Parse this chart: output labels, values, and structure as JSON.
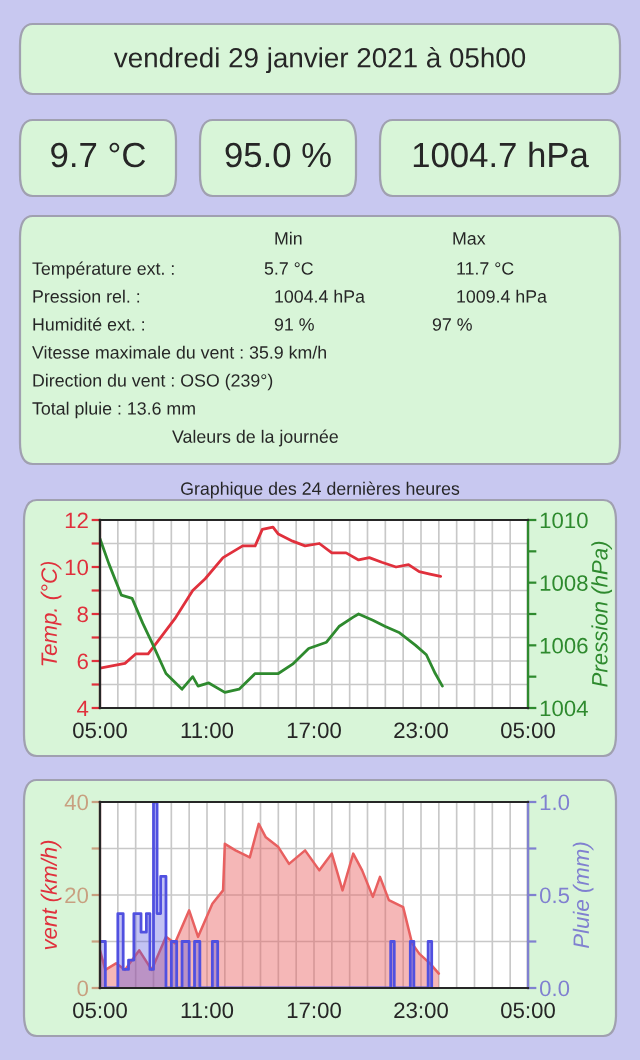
{
  "chart_data": [
    {
      "type": "other",
      "title": "vendredi 29 janvier 2021 à 05h00",
      "annotations": [
        "9.7 °C",
        "95.0 %",
        "1004.7 hPa",
        "Min",
        "Max",
        "Température ext. :",
        "5.7 °C",
        "11.7 °C",
        "Pression rel. :",
        "1004.4 hPa",
        "1009.4 hPa",
        "Humidité ext. :",
        "91 %",
        "97 %",
        "Vitesse maximale du vent : 35.9 km/h",
        "Direction du vent : OSO (239°)",
        "Total pluie : 13.6 mm",
        "Valeurs de la journée"
      ]
    },
    {
      "type": "line",
      "title": "Graphique des 24 dernières heures",
      "ylabel": "Temp. (°C)",
      "y2label": "Pression (hPa)",
      "grid": true,
      "xlim": [
        "2021-01-28T05:00",
        "2021-01-29T05:00"
      ],
      "xticks": [
        {
          "value": "2021-01-28T05:00",
          "label": "05:00"
        },
        {
          "value": "2021-01-28T06:00",
          "label": null
        },
        {
          "value": "2021-01-28T07:00",
          "label": null
        },
        {
          "value": "2021-01-28T08:00",
          "label": null
        },
        {
          "value": "2021-01-28T09:00",
          "label": null
        },
        {
          "value": "2021-01-28T10:00",
          "label": null
        },
        {
          "value": "2021-01-28T11:00",
          "label": "11:00"
        },
        {
          "value": "2021-01-28T12:00",
          "label": null
        },
        {
          "value": "2021-01-28T13:00",
          "label": null
        },
        {
          "value": "2021-01-28T14:00",
          "label": null
        },
        {
          "value": "2021-01-28T15:00",
          "label": null
        },
        {
          "value": "2021-01-28T16:00",
          "label": null
        },
        {
          "value": "2021-01-28T17:00",
          "label": "17:00"
        },
        {
          "value": "2021-01-28T18:00",
          "label": null
        },
        {
          "value": "2021-01-28T19:00",
          "label": null
        },
        {
          "value": "2021-01-28T20:00",
          "label": null
        },
        {
          "value": "2021-01-28T21:00",
          "label": null
        },
        {
          "value": "2021-01-28T22:00",
          "label": null
        },
        {
          "value": "2021-01-28T23:00",
          "label": "23:00"
        },
        {
          "value": "2021-01-29T00:00",
          "label": null
        },
        {
          "value": "2021-01-29T01:00",
          "label": null
        },
        {
          "value": "2021-01-29T02:00",
          "label": null
        },
        {
          "value": "2021-01-29T03:00",
          "label": null
        },
        {
          "value": "2021-01-29T04:00",
          "label": null
        },
        {
          "value": "2021-01-29T05:00",
          "label": "05:00"
        }
      ],
      "ylim": [
        4,
        12
      ],
      "yticks": [
        4,
        {
          "value": 5,
          "label": null
        },
        6,
        {
          "value": 7,
          "label": null
        },
        8,
        {
          "value": 9,
          "label": null
        },
        10,
        {
          "value": 11,
          "label": null
        },
        12
      ],
      "y2lim": [
        1004,
        1010
      ],
      "y2ticks": [
        1004,
        {
          "value": 1005,
          "label": null
        },
        1006,
        {
          "value": 1007,
          "label": null
        },
        1008,
        {
          "value": 1009,
          "label": null
        },
        1010
      ],
      "series": [
        {
          "color": "#e0303c",
          "axis": "y",
          "x": [
            "2021-01-28T05:00",
            "2021-01-28T06:24",
            "2021-01-28T07:00",
            "2021-01-28T07:42",
            "2021-01-28T08:18",
            "2021-01-28T09:12",
            "2021-01-28T10:12",
            "2021-01-28T10:54",
            "2021-01-28T11:54",
            "2021-01-28T13:00",
            "2021-01-28T13:42",
            "2021-01-28T14:06",
            "2021-01-28T14:42",
            "2021-01-28T15:00",
            "2021-01-28T15:48",
            "2021-01-28T16:30",
            "2021-01-28T17:18",
            "2021-01-28T18:00",
            "2021-01-28T18:48",
            "2021-01-28T19:30",
            "2021-01-28T20:06",
            "2021-01-28T20:48",
            "2021-01-28T21:36",
            "2021-01-28T22:18",
            "2021-01-28T22:54",
            "2021-01-28T23:30",
            "2021-01-29T00:06"
          ],
          "values": [
            5.7,
            5.9,
            6.3,
            6.3,
            6.9,
            7.8,
            9.0,
            9.5,
            10.4,
            10.9,
            10.9,
            11.6,
            11.7,
            11.4,
            11.1,
            10.9,
            11.0,
            10.6,
            10.6,
            10.3,
            10.4,
            10.2,
            10.0,
            10.1,
            9.8,
            9.7,
            9.6
          ]
        },
        {
          "color": "#2e8a2e",
          "axis": "y2",
          "x": [
            "2021-01-28T05:00",
            "2021-01-28T05:30",
            "2021-01-28T06:12",
            "2021-01-28T06:48",
            "2021-01-28T07:24",
            "2021-01-28T07:54",
            "2021-01-28T08:42",
            "2021-01-28T09:36",
            "2021-01-28T10:12",
            "2021-01-28T10:30",
            "2021-01-28T11:06",
            "2021-01-28T12:00",
            "2021-01-28T12:48",
            "2021-01-28T13:42",
            "2021-01-28T14:30",
            "2021-01-28T15:00",
            "2021-01-28T15:48",
            "2021-01-28T16:42",
            "2021-01-28T17:42",
            "2021-01-28T18:24",
            "2021-01-28T19:12",
            "2021-01-28T19:30",
            "2021-01-28T20:18",
            "2021-01-28T21:00",
            "2021-01-28T21:48",
            "2021-01-28T22:42",
            "2021-01-28T23:18",
            "2021-01-28T23:48",
            "2021-01-29T00:12"
          ],
          "values": [
            1009.4,
            1008.6,
            1007.6,
            1007.5,
            1006.7,
            1006.1,
            1005.1,
            1004.6,
            1005.0,
            1004.7,
            1004.8,
            1004.5,
            1004.6,
            1005.1,
            1005.1,
            1005.1,
            1005.4,
            1005.9,
            1006.1,
            1006.6,
            1006.9,
            1007.0,
            1006.8,
            1006.6,
            1006.4,
            1006.0,
            1005.7,
            1005.1,
            1004.7
          ]
        }
      ]
    },
    {
      "type": "line",
      "ylabel": "vent (km/h)",
      "y2label": "Pluie (mm)",
      "grid": true,
      "xlim": [
        "2021-01-28T05:00",
        "2021-01-29T05:00"
      ],
      "xticks": [
        {
          "value": "2021-01-28T05:00",
          "label": "05:00"
        },
        {
          "value": "2021-01-28T06:00",
          "label": null
        },
        {
          "value": "2021-01-28T07:00",
          "label": null
        },
        {
          "value": "2021-01-28T08:00",
          "label": null
        },
        {
          "value": "2021-01-28T09:00",
          "label": null
        },
        {
          "value": "2021-01-28T10:00",
          "label": null
        },
        {
          "value": "2021-01-28T11:00",
          "label": "11:00"
        },
        {
          "value": "2021-01-28T12:00",
          "label": null
        },
        {
          "value": "2021-01-28T13:00",
          "label": null
        },
        {
          "value": "2021-01-28T14:00",
          "label": null
        },
        {
          "value": "2021-01-28T15:00",
          "label": null
        },
        {
          "value": "2021-01-28T16:00",
          "label": null
        },
        {
          "value": "2021-01-28T17:00",
          "label": "17:00"
        },
        {
          "value": "2021-01-28T18:00",
          "label": null
        },
        {
          "value": "2021-01-28T19:00",
          "label": null
        },
        {
          "value": "2021-01-28T20:00",
          "label": null
        },
        {
          "value": "2021-01-28T21:00",
          "label": null
        },
        {
          "value": "2021-01-28T22:00",
          "label": null
        },
        {
          "value": "2021-01-28T23:00",
          "label": "23:00"
        },
        {
          "value": "2021-01-29T00:00",
          "label": null
        },
        {
          "value": "2021-01-29T01:00",
          "label": null
        },
        {
          "value": "2021-01-29T02:00",
          "label": null
        },
        {
          "value": "2021-01-29T03:00",
          "label": null
        },
        {
          "value": "2021-01-29T04:00",
          "label": null
        },
        {
          "value": "2021-01-29T05:00",
          "label": "05:00"
        }
      ],
      "ylim": [
        0,
        40
      ],
      "yticks": [
        0,
        {
          "value": 10,
          "label": null
        },
        20,
        {
          "value": 30,
          "label": null
        },
        40
      ],
      "y2lim": [
        0,
        1.0
      ],
      "y2ticks": [
        {
          "value": 0,
          "label": "0.0"
        },
        {
          "value": 0.25,
          "label": null
        },
        0.5,
        {
          "value": 0.75,
          "label": null
        },
        {
          "value": 1.0,
          "label": "1.0"
        }
      ],
      "series": [
        {
          "type": "area",
          "color": "#e86060",
          "axis": "y",
          "x": [
            "2021-01-28T05:00",
            "2021-01-28T05:18",
            "2021-01-28T05:54",
            "2021-01-28T06:24",
            "2021-01-28T07:12",
            "2021-01-28T07:54",
            "2021-01-28T08:42",
            "2021-01-28T09:12",
            "2021-01-28T10:00",
            "2021-01-28T10:30",
            "2021-01-28T11:18",
            "2021-01-28T11:54",
            "2021-01-28T12:00",
            "2021-01-28T12:36",
            "2021-01-28T13:24",
            "2021-01-28T13:54",
            "2021-01-28T14:18",
            "2021-01-28T15:00",
            "2021-01-28T15:36",
            "2021-01-28T16:30",
            "2021-01-28T17:18",
            "2021-01-28T18:00",
            "2021-01-28T18:36",
            "2021-01-28T19:12",
            "2021-01-28T19:42",
            "2021-01-28T20:18",
            "2021-01-28T20:42",
            "2021-01-28T21:12",
            "2021-01-28T22:00",
            "2021-01-28T22:30",
            "2021-01-28T22:54",
            "2021-01-28T23:30",
            "2021-01-29T00:00"
          ],
          "values": [
            8.1,
            3.9,
            5.3,
            3.9,
            8.1,
            3.9,
            11,
            9.6,
            16.7,
            11,
            18.1,
            21,
            31,
            29.6,
            28.1,
            35.3,
            32.4,
            30.3,
            26.7,
            29.6,
            25.3,
            28.9,
            21,
            28.9,
            25.3,
            19.6,
            23.9,
            18.9,
            17.4,
            9.6,
            7.4,
            5.3,
            3.1
          ]
        },
        {
          "type": "step",
          "color": "#5050e0",
          "axis": "y2",
          "x": [
            "2021-01-28T05:00",
            "2021-01-28T05:18",
            "2021-01-28T06:00",
            "2021-01-28T06:18",
            "2021-01-28T06:36",
            "2021-01-28T06:54",
            "2021-01-28T07:18",
            "2021-01-28T07:36",
            "2021-01-28T07:48",
            "2021-01-28T08:00",
            "2021-01-28T08:12",
            "2021-01-28T08:24",
            "2021-01-28T08:42",
            "2021-01-28T09:00",
            "2021-01-28T09:18",
            "2021-01-28T09:36",
            "2021-01-28T10:00",
            "2021-01-28T10:18",
            "2021-01-28T10:36",
            "2021-01-28T11:18",
            "2021-01-28T11:36",
            "2021-01-28T21:18",
            "2021-01-28T21:30",
            "2021-01-28T22:24",
            "2021-01-28T22:36",
            "2021-01-28T23:24",
            "2021-01-28T23:36"
          ],
          "values": [
            0.25,
            0.0,
            0.4,
            0.1,
            0.15,
            0.4,
            0.3,
            0.4,
            0.1,
            1.0,
            0.4,
            0.6,
            0.0,
            0.25,
            0.0,
            0.25,
            0.0,
            0.25,
            0.0,
            0.25,
            0.0,
            0.25,
            0.0,
            0.25,
            0.0,
            0.25,
            0.0
          ]
        }
      ]
    }
  ]
}
